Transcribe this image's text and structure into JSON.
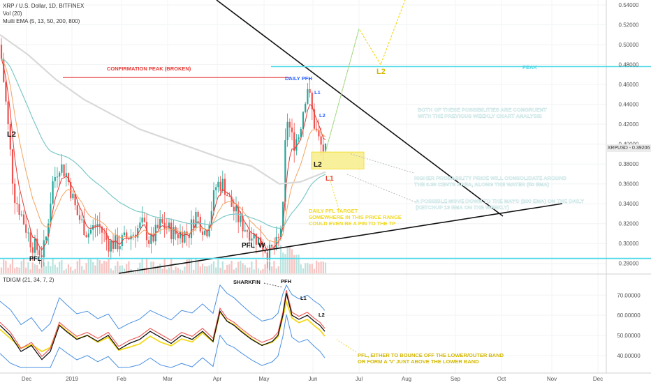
{
  "header": {
    "symbol_line": "XRP / U.S. Dollar, 1D, BITFINEX",
    "vol_line": "Vol (20)",
    "ema_line": "Multi EMA (5, 13, 50, 200, 800)"
  },
  "price_axis": {
    "ticks": [
      "0.54000",
      "0.52000",
      "0.50000",
      "0.48000",
      "0.46000",
      "0.44000",
      "0.42000",
      "0.40000",
      "0.38000",
      "0.36000",
      "0.34000",
      "0.32000",
      "0.30000",
      "0.28000"
    ],
    "current_label": "XRPUSD - 0.39206",
    "current_value": 0.39206
  },
  "indicator": {
    "name": "TDIGM (21, 34, 7, 2)",
    "ticks": [
      "70.00000",
      "60.00000",
      "50.00000",
      "40.00000"
    ]
  },
  "time_axis": [
    "Dec",
    "2019",
    "Feb",
    "Mar",
    "Apr",
    "May",
    "Jun",
    "Jul",
    "Aug",
    "Sep",
    "Oct",
    "Nov",
    "Dec"
  ],
  "annotations": {
    "confirmation_peak": "CONFIRMATION PEAK (BROKEN)",
    "peak": "PEAK",
    "daily_pfh": "DAILY PFH",
    "l1_top": "L1",
    "l2_mid": "L2",
    "l2_left": "L2",
    "l2_box": "L2",
    "l1_box": "L1",
    "l2_target": "L2",
    "pfl_left": "PFL",
    "pfl_w": "PFL",
    "w": "W",
    "both_possibilities": [
      "BOTH OF THESE POSSIBILITIES ARE CONGRUENT",
      "WITH THE PREVIOUS WEEKLY CHART ANALYSIS"
    ],
    "higher_probability": [
      "HIGHER PROBABILITY PRICE WILL CONSOLIDATE AROUND",
      "THE 0.38 CENTS AREA, ALONG THE WATER (50 EMA)"
    ],
    "possible_move": [
      "A POSSIBLE MOVE DOWN TO THE MAYO (200 EMA) ON THE DAILY",
      "(KETCHUP 13 EMA ON THE WEEKLY)"
    ],
    "daily_pfl_target": [
      "DAILY PFL TARGET",
      "SOMEWHERE IN THIS PRICE RANGE",
      "COULD EVEN BE A PIN TO THE TP"
    ],
    "sharkfin": "SHARKFIN",
    "pfh": "PFH",
    "ind_l1": "L1",
    "ind_l2": "L2",
    "pfl_bounce": [
      "PFL, EITHER TO BOUNCE OFF THE LOWER/OUTER BAND",
      "OR FORM A 'V' JUST ABOVE THE LOWER BAND"
    ]
  },
  "colors": {
    "up": "#26a69a",
    "down": "#ef5350",
    "ema5": "#e53935",
    "ema50": "#7ec8c8",
    "ema200": "#e8e8e8",
    "yellow": "#f2d91a",
    "cyan": "#4dd9e8",
    "band": "#4a90e2"
  },
  "chart_data": {
    "type": "candlestick",
    "price_axis_range": [
      0.27,
      0.545
    ],
    "indicator_axis_range": [
      33,
      76
    ],
    "series": [
      {
        "name": "XRP / U.S. Dollar, 1D, BITFINEX",
        "key_closes": [
          0.5,
          0.3,
          0.37,
          0.29,
          0.36,
          0.32,
          0.3,
          0.3,
          0.36,
          0.31,
          0.3,
          0.43,
          0.46,
          0.42,
          0.39206
        ]
      },
      {
        "name": "TDIGM (21, 34, 7, 2)",
        "key_values": [
          55,
          38,
          55,
          48,
          50,
          43,
          52,
          47,
          62,
          48,
          47,
          71,
          60,
          57,
          52
        ]
      }
    ],
    "levels": {
      "confirmation_peak": 0.467,
      "peak": 0.478,
      "support": 0.285,
      "consolidation_box": [
        0.375,
        0.392
      ]
    }
  }
}
